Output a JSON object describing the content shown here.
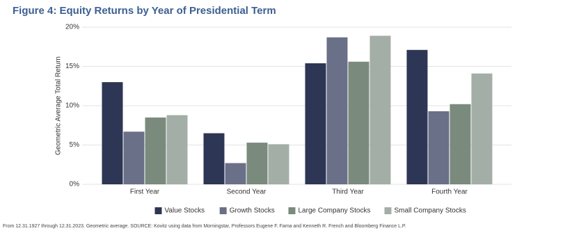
{
  "chart_data": {
    "type": "bar",
    "title": "Figure 4: Equity Returns by Year of Presidential Term",
    "y_label": "Geometric Average Total Return",
    "footnote": "From 12.31.1927 through 12.31.2023. Geometric average. SOURCE: Kovitz using data from Morningstar, Professors Eugene F. Fama and Kenneth R. French and Bloomberg Finance L.P.",
    "categories": [
      "First Year",
      "Second Year",
      "Third Year",
      "Fourth Year"
    ],
    "series": [
      {
        "name": "Value Stocks",
        "color": "#2d3654",
        "values": [
          13.0,
          6.5,
          15.4,
          17.1
        ]
      },
      {
        "name": "Growth Stocks",
        "color": "#6b7089",
        "values": [
          6.7,
          2.7,
          18.7,
          9.3
        ]
      },
      {
        "name": "Large Company Stocks",
        "color": "#7a8a7c",
        "values": [
          8.5,
          5.3,
          15.6,
          10.2
        ]
      },
      {
        "name": "Small Company Stocks",
        "color": "#a3aea6",
        "values": [
          8.8,
          5.1,
          18.9,
          14.1
        ]
      }
    ],
    "ylim": [
      0,
      20
    ],
    "yticks": [
      {
        "value": 0,
        "label": "0%"
      },
      {
        "value": 5,
        "label": "5%"
      },
      {
        "value": 10,
        "label": "10%"
      },
      {
        "value": 15,
        "label": "15%"
      },
      {
        "value": 20,
        "label": "20%"
      }
    ],
    "grid": true,
    "legend": "bottom"
  }
}
